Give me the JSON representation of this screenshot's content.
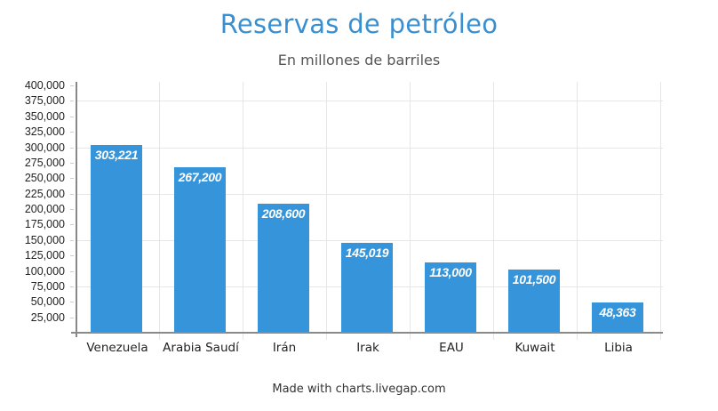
{
  "header": {
    "title": "Reservas de petróleo",
    "subtitle": "En millones de barriles"
  },
  "footer": {
    "credit": "Made with charts.livegap.com"
  },
  "colors": {
    "title": "#3a8fd0",
    "bar": "#3594da",
    "bar_label": "#ffffff"
  },
  "chart_data": {
    "type": "bar",
    "title": "Reservas de petróleo",
    "subtitle": "En millones de barriles",
    "xlabel": "",
    "ylabel": "",
    "categories": [
      "Venezuela",
      "Arabia Saudí",
      "Irán",
      "Irak",
      "EAU",
      "Kuwait",
      "Libia"
    ],
    "values": [
      303221,
      267200,
      208600,
      145019,
      113000,
      101500,
      48363
    ],
    "value_labels": [
      "303,221",
      "267,200",
      "208,600",
      "145,019",
      "113,000",
      "101,500",
      "48,363"
    ],
    "ylim": [
      0,
      400000
    ],
    "yticks": [
      "400,000",
      "375,000",
      "350,000",
      "325,000",
      "300,000",
      "275,000",
      "250,000",
      "225,000",
      "200,000",
      "175,000",
      "150,000",
      "125,000",
      "100,000",
      "75,000",
      "50,000",
      "25,000"
    ],
    "grid": true,
    "legend": "none",
    "data_labels": "inside-top"
  }
}
